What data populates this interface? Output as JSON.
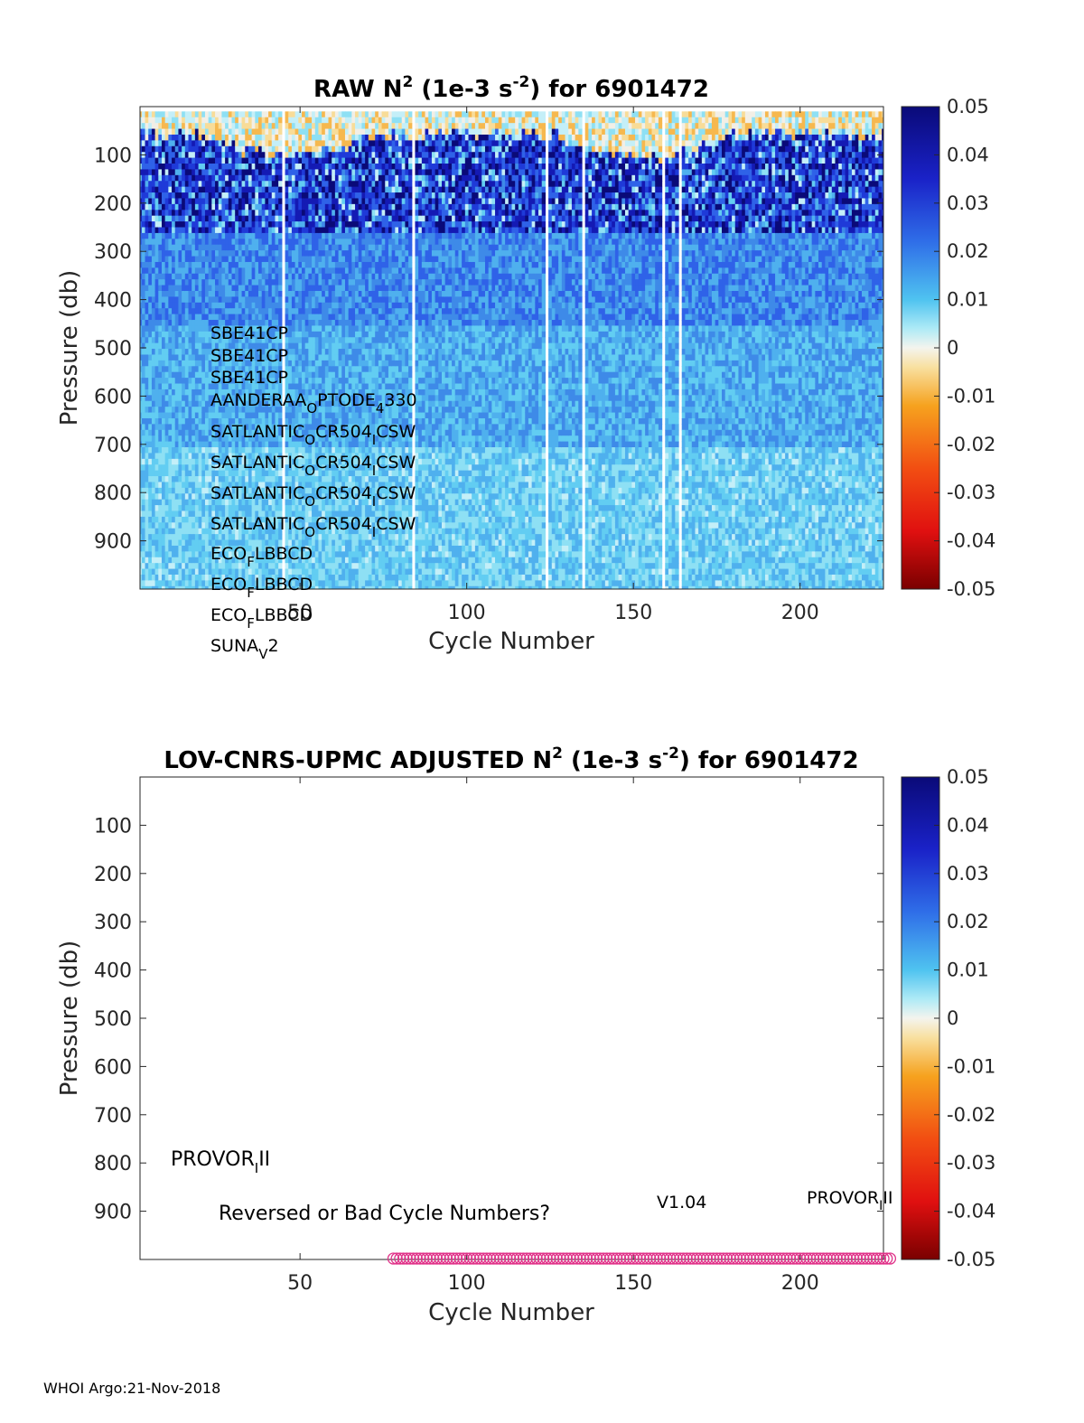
{
  "chart_data": [
    {
      "type": "heatmap",
      "title_parts": [
        "RAW N",
        "2",
        " (1e-3 s",
        "-2",
        ") for 6901472"
      ],
      "xlabel": "Cycle Number",
      "ylabel": "Pressure (db)",
      "xlim": [
        2,
        225
      ],
      "ylim": [
        0,
        1000
      ],
      "y_reversed": true,
      "xticks": [
        50,
        100,
        150,
        200
      ],
      "yticks": [
        100,
        200,
        300,
        400,
        500,
        600,
        700,
        800,
        900
      ],
      "data_extent": {
        "x": [
          2,
          225
        ],
        "p": [
          10,
          990
        ]
      },
      "missing_cycles": [
        45,
        84,
        124,
        135,
        159,
        164
      ],
      "colorbar": {
        "min": -0.05,
        "max": 0.05,
        "ticks": [
          "0.05",
          "0.04",
          "0.03",
          "0.02",
          "0.01",
          "0",
          "-0.01",
          "-0.02",
          "-0.03",
          "-0.04",
          "-0.05"
        ]
      },
      "sensor_notes": [
        {
          "parts": [
            [
              "SBE41CP",
              ""
            ]
          ]
        },
        {
          "parts": [
            [
              "SBE41CP",
              ""
            ]
          ]
        },
        {
          "parts": [
            [
              "SBE41CP",
              ""
            ]
          ]
        },
        {
          "parts": [
            [
              "AANDERAA",
              ""
            ],
            [
              "O",
              "sub"
            ],
            [
              "PTODE",
              ""
            ],
            [
              "4",
              "sub"
            ],
            [
              "330",
              ""
            ]
          ]
        },
        {
          "parts": [
            [
              "SATLANTIC",
              ""
            ],
            [
              "O",
              "sub"
            ],
            [
              "CR504",
              ""
            ],
            [
              "I",
              "sub"
            ],
            [
              "CSW",
              ""
            ]
          ]
        },
        {
          "parts": [
            [
              "SATLANTIC",
              ""
            ],
            [
              "O",
              "sub"
            ],
            [
              "CR504",
              ""
            ],
            [
              "I",
              "sub"
            ],
            [
              "CSW",
              ""
            ]
          ]
        },
        {
          "parts": [
            [
              "SATLANTIC",
              ""
            ],
            [
              "O",
              "sub"
            ],
            [
              "CR504",
              ""
            ],
            [
              "I",
              "sub"
            ],
            [
              "CSW",
              ""
            ]
          ]
        },
        {
          "parts": [
            [
              "SATLANTIC",
              ""
            ],
            [
              "O",
              "sub"
            ],
            [
              "CR504",
              ""
            ],
            [
              "I",
              "sub"
            ],
            [
              "CSW",
              ""
            ]
          ]
        },
        {
          "parts": [
            [
              "ECO",
              ""
            ],
            [
              "F",
              "sub"
            ],
            [
              "LBBCD",
              ""
            ]
          ]
        },
        {
          "parts": [
            [
              "ECO",
              ""
            ],
            [
              "F",
              "sub"
            ],
            [
              "LBBCD",
              ""
            ]
          ]
        },
        {
          "parts": [
            [
              "ECO",
              ""
            ],
            [
              "F",
              "sub"
            ],
            [
              "LBBCD",
              ""
            ]
          ]
        },
        {
          "parts": [
            [
              "SUNA",
              ""
            ],
            [
              "V",
              "sub"
            ],
            [
              "2",
              ""
            ]
          ]
        }
      ]
    },
    {
      "type": "scatter",
      "title_parts": [
        "LOV-CNRS-UPMC  ADJUSTED N",
        "2",
        " (1e-3 s",
        "-2",
        ") for 6901472"
      ],
      "xlabel": "Cycle Number",
      "ylabel": "Pressure (db)",
      "xlim": [
        2,
        225
      ],
      "ylim": [
        0,
        1000
      ],
      "y_reversed": true,
      "xticks": [
        50,
        100,
        150,
        200
      ],
      "yticks": [
        100,
        200,
        300,
        400,
        500,
        600,
        700,
        800,
        900
      ],
      "series": [
        {
          "marker": "circle",
          "color": "#e0348a",
          "x_range": [
            78,
            227
          ],
          "y": 1000
        }
      ],
      "colorbar": {
        "min": -0.05,
        "max": 0.05,
        "ticks": [
          "0.05",
          "0.04",
          "0.03",
          "0.02",
          "0.01",
          "0",
          "-0.01",
          "-0.02",
          "-0.03",
          "-0.04",
          "-0.05"
        ]
      },
      "annotations": {
        "platform_left": [
          "PROVOR",
          "I",
          "II"
        ],
        "warning": "Reversed or Bad Cycle Numbers?",
        "version": "V1.04",
        "platform_right": [
          "PROVOR",
          "I",
          "II"
        ]
      }
    }
  ],
  "footer": "WHOI Argo:21-Nov-2018"
}
